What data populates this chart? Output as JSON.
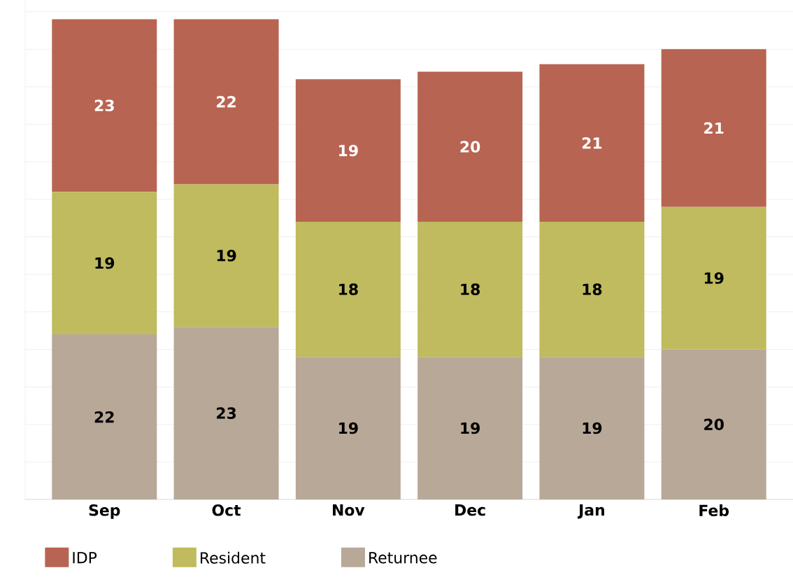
{
  "chart_data": {
    "type": "bar",
    "stacked": true,
    "categories": [
      "Sep",
      "Oct",
      "Nov",
      "Dec",
      "Jan",
      "Feb"
    ],
    "series": [
      {
        "name": "Returnee",
        "color": "#b8a898",
        "values": [
          22,
          23,
          19,
          19,
          19,
          20
        ]
      },
      {
        "name": "Resident",
        "color": "#bfbb5e",
        "values": [
          19,
          19,
          18,
          18,
          18,
          19
        ]
      },
      {
        "name": "IDP",
        "color": "#b86452",
        "values": [
          23,
          22,
          19,
          20,
          21,
          21
        ]
      }
    ],
    "grid": "y",
    "legend": "bottom",
    "data_labels": true
  }
}
